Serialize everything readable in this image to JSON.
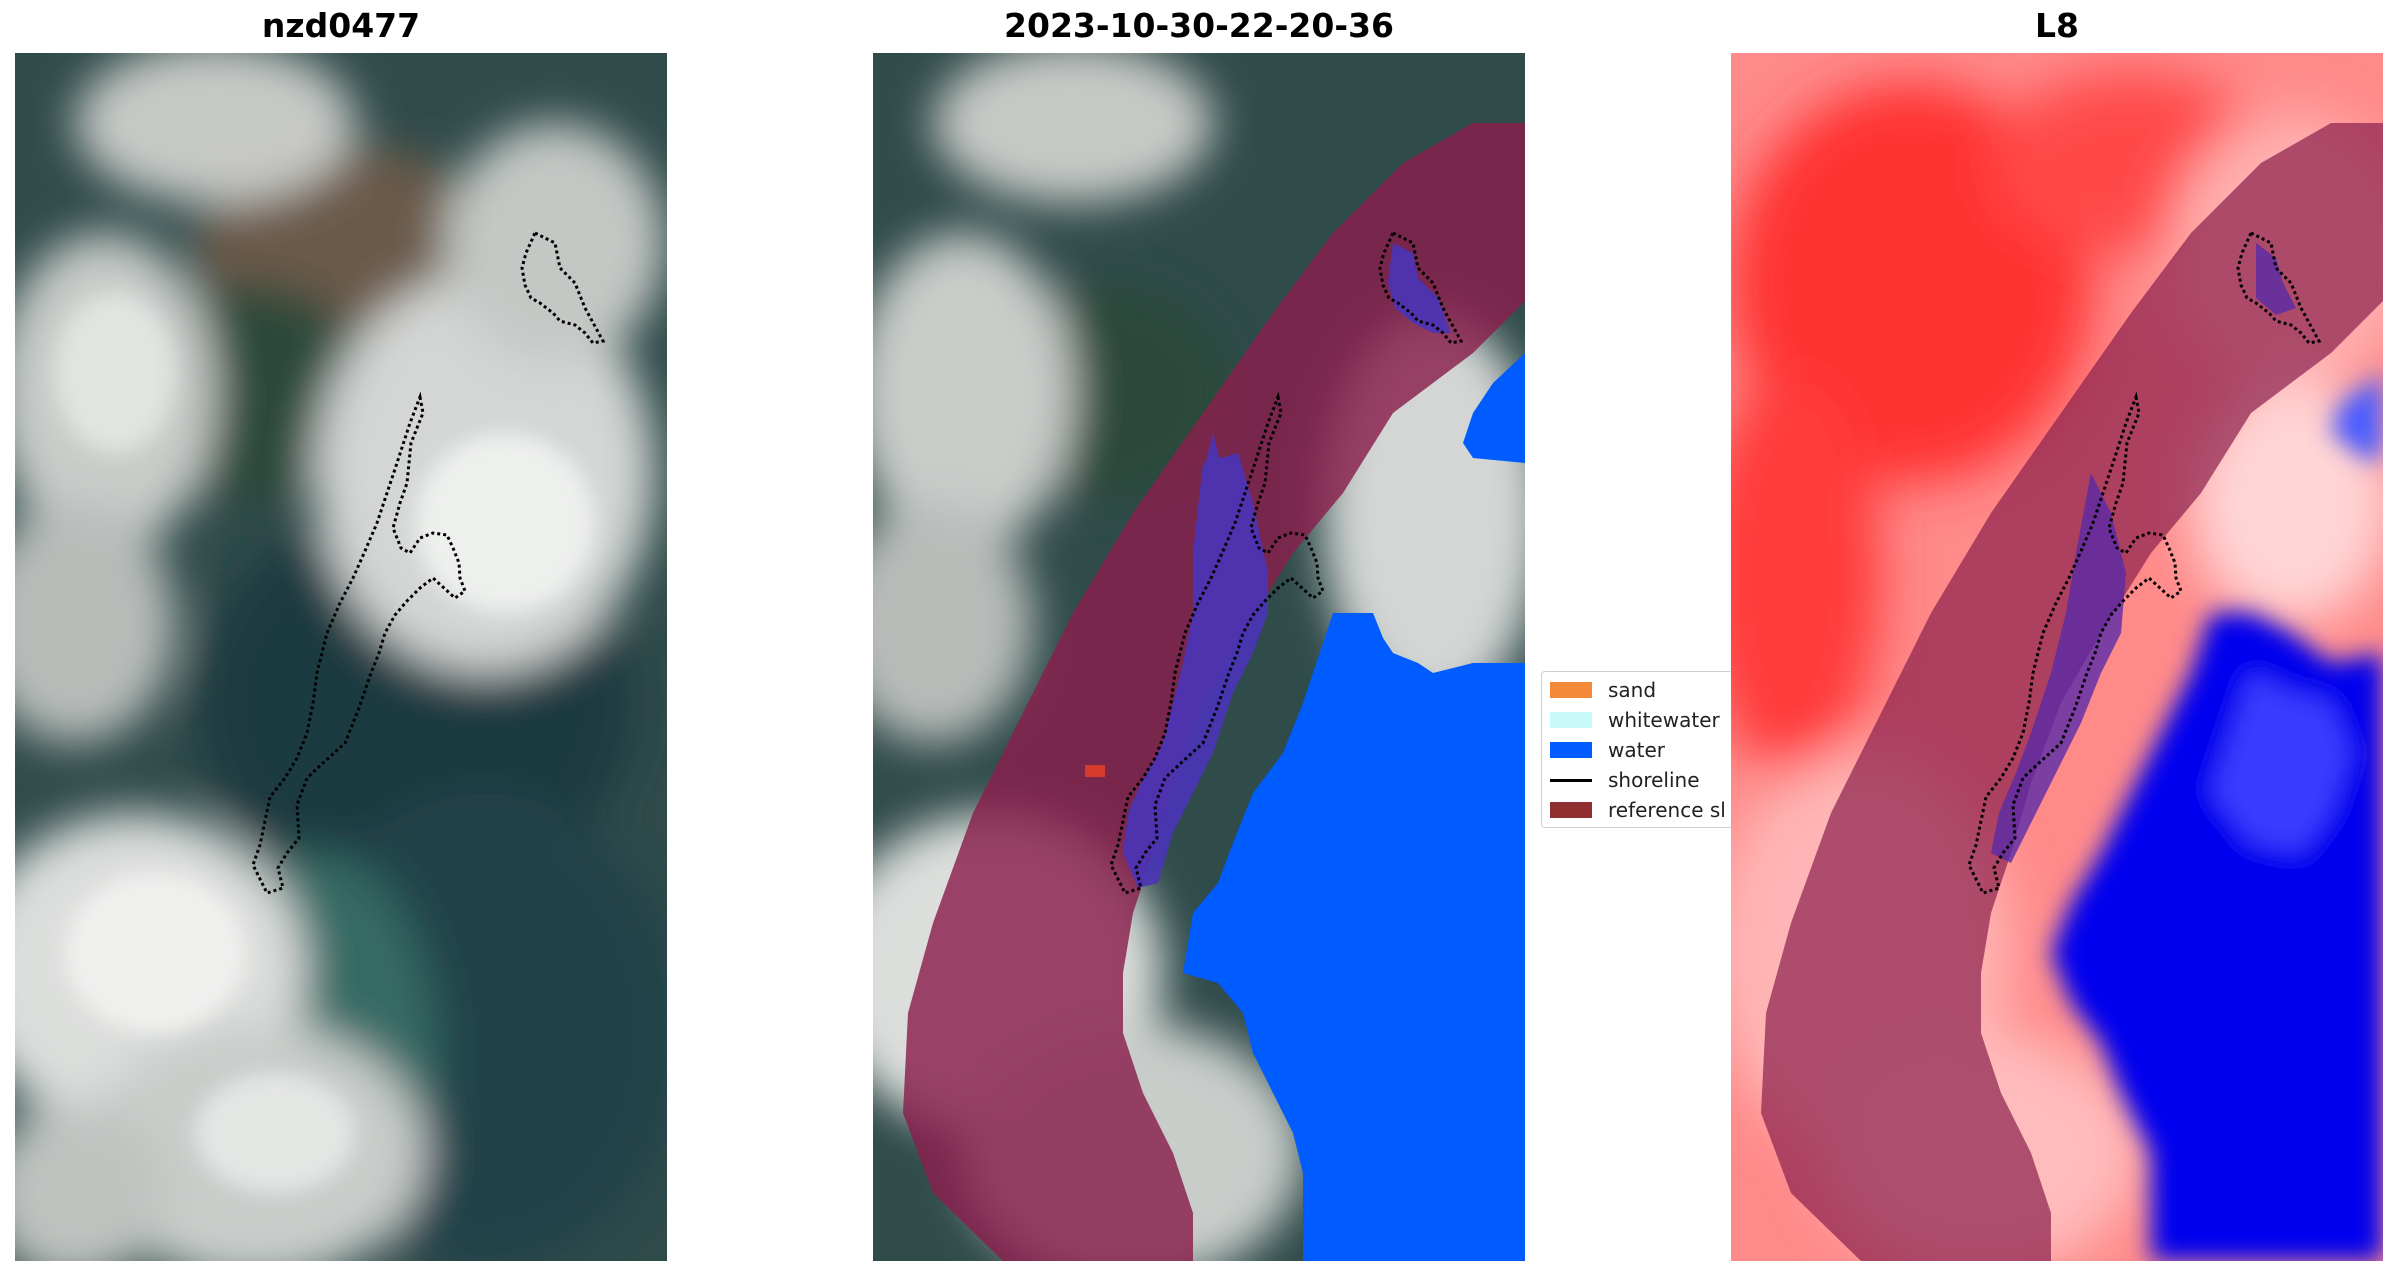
{
  "panels": [
    {
      "title": "nzd0477"
    },
    {
      "title": "2023-10-30-22-20-36"
    },
    {
      "title": "L8"
    }
  ],
  "legend": {
    "items": [
      {
        "label": "sand",
        "color": "#f5893a",
        "kind": "swatch"
      },
      {
        "label": "whitewater",
        "color": "#c8fafa",
        "kind": "swatch"
      },
      {
        "label": "water",
        "color": "#005cff",
        "kind": "swatch"
      },
      {
        "label": "shoreline",
        "color": "#000000",
        "kind": "line"
      },
      {
        "label": "reference sl",
        "color": "#8f2f2f",
        "kind": "swatch"
      }
    ]
  },
  "colors": {
    "reference_buffer": "#8a1f4d",
    "water_class": "#005cff",
    "index_positive": "#ff2a2a",
    "index_negative": "#0000ee",
    "shoreline": "#000000"
  }
}
